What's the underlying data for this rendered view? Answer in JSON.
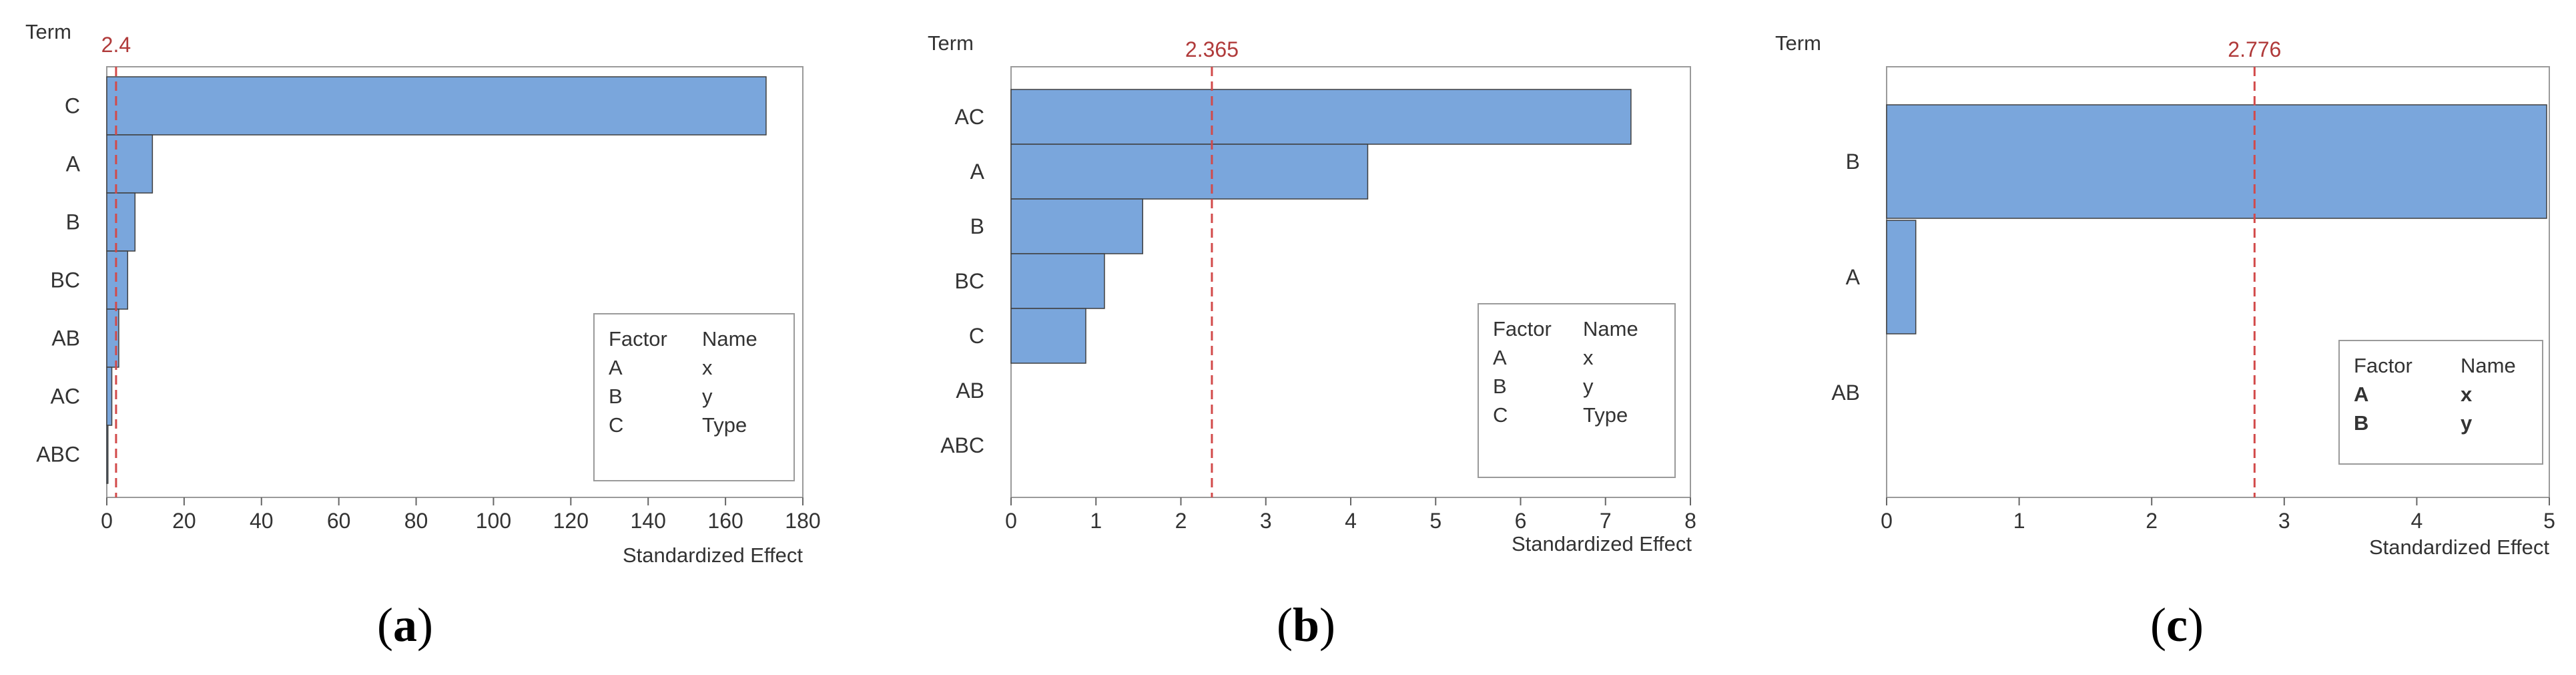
{
  "chart_data": [
    {
      "type": "bar",
      "orientation": "horizontal",
      "caption": "a",
      "categories": [
        "C",
        "A",
        "B",
        "BC",
        "AB",
        "AC",
        "ABC"
      ],
      "values": [
        170.5,
        11.8,
        7.3,
        5.4,
        3.1,
        1.3,
        0.3
      ],
      "reference_line": {
        "value": 2.4,
        "label": "2.4"
      },
      "ylabel": "Term",
      "xlabel": "Standardized Effect",
      "xlim": [
        0,
        180
      ],
      "xticks": [
        0,
        20,
        40,
        60,
        80,
        100,
        120,
        140,
        160,
        180
      ],
      "legend": {
        "headers": [
          "Factor",
          "Name"
        ],
        "rows": [
          [
            "A",
            "x"
          ],
          [
            "B",
            "y"
          ],
          [
            "C",
            "Type"
          ]
        ],
        "bold": false
      },
      "bar_color": "#7aa6dc",
      "line_color": "#d24a4a"
    },
    {
      "type": "bar",
      "orientation": "horizontal",
      "caption": "b",
      "categories": [
        "AC",
        "A",
        "B",
        "BC",
        "C",
        "AB",
        "ABC"
      ],
      "values": [
        7.3,
        4.2,
        1.55,
        1.1,
        0.88,
        0,
        0
      ],
      "reference_line": {
        "value": 2.365,
        "label": "2.365"
      },
      "ylabel": "Term",
      "xlabel": "Standardized Effect",
      "xlim": [
        0,
        8
      ],
      "xticks": [
        0,
        1,
        2,
        3,
        4,
        5,
        6,
        7,
        8
      ],
      "legend": {
        "headers": [
          "Factor",
          "Name"
        ],
        "rows": [
          [
            "A",
            "x"
          ],
          [
            "B",
            "y"
          ],
          [
            "C",
            "Type"
          ]
        ],
        "bold": false
      },
      "bar_color": "#7aa6dc",
      "line_color": "#d24a4a"
    },
    {
      "type": "bar",
      "orientation": "horizontal",
      "caption": "c",
      "categories": [
        "B",
        "A",
        "AB"
      ],
      "values": [
        4.98,
        0.22,
        0
      ],
      "reference_line": {
        "value": 2.776,
        "label": "2.776"
      },
      "ylabel": "Term",
      "xlabel": "Standardized Effect",
      "xlim": [
        0,
        5
      ],
      "xticks": [
        0,
        1,
        2,
        3,
        4,
        5
      ],
      "legend": {
        "headers": [
          "Factor",
          "Name"
        ],
        "rows": [
          [
            "A",
            "x"
          ],
          [
            "B",
            "y"
          ]
        ],
        "bold": true
      },
      "bar_color": "#7aa6dc",
      "line_color": "#d24a4a"
    }
  ]
}
